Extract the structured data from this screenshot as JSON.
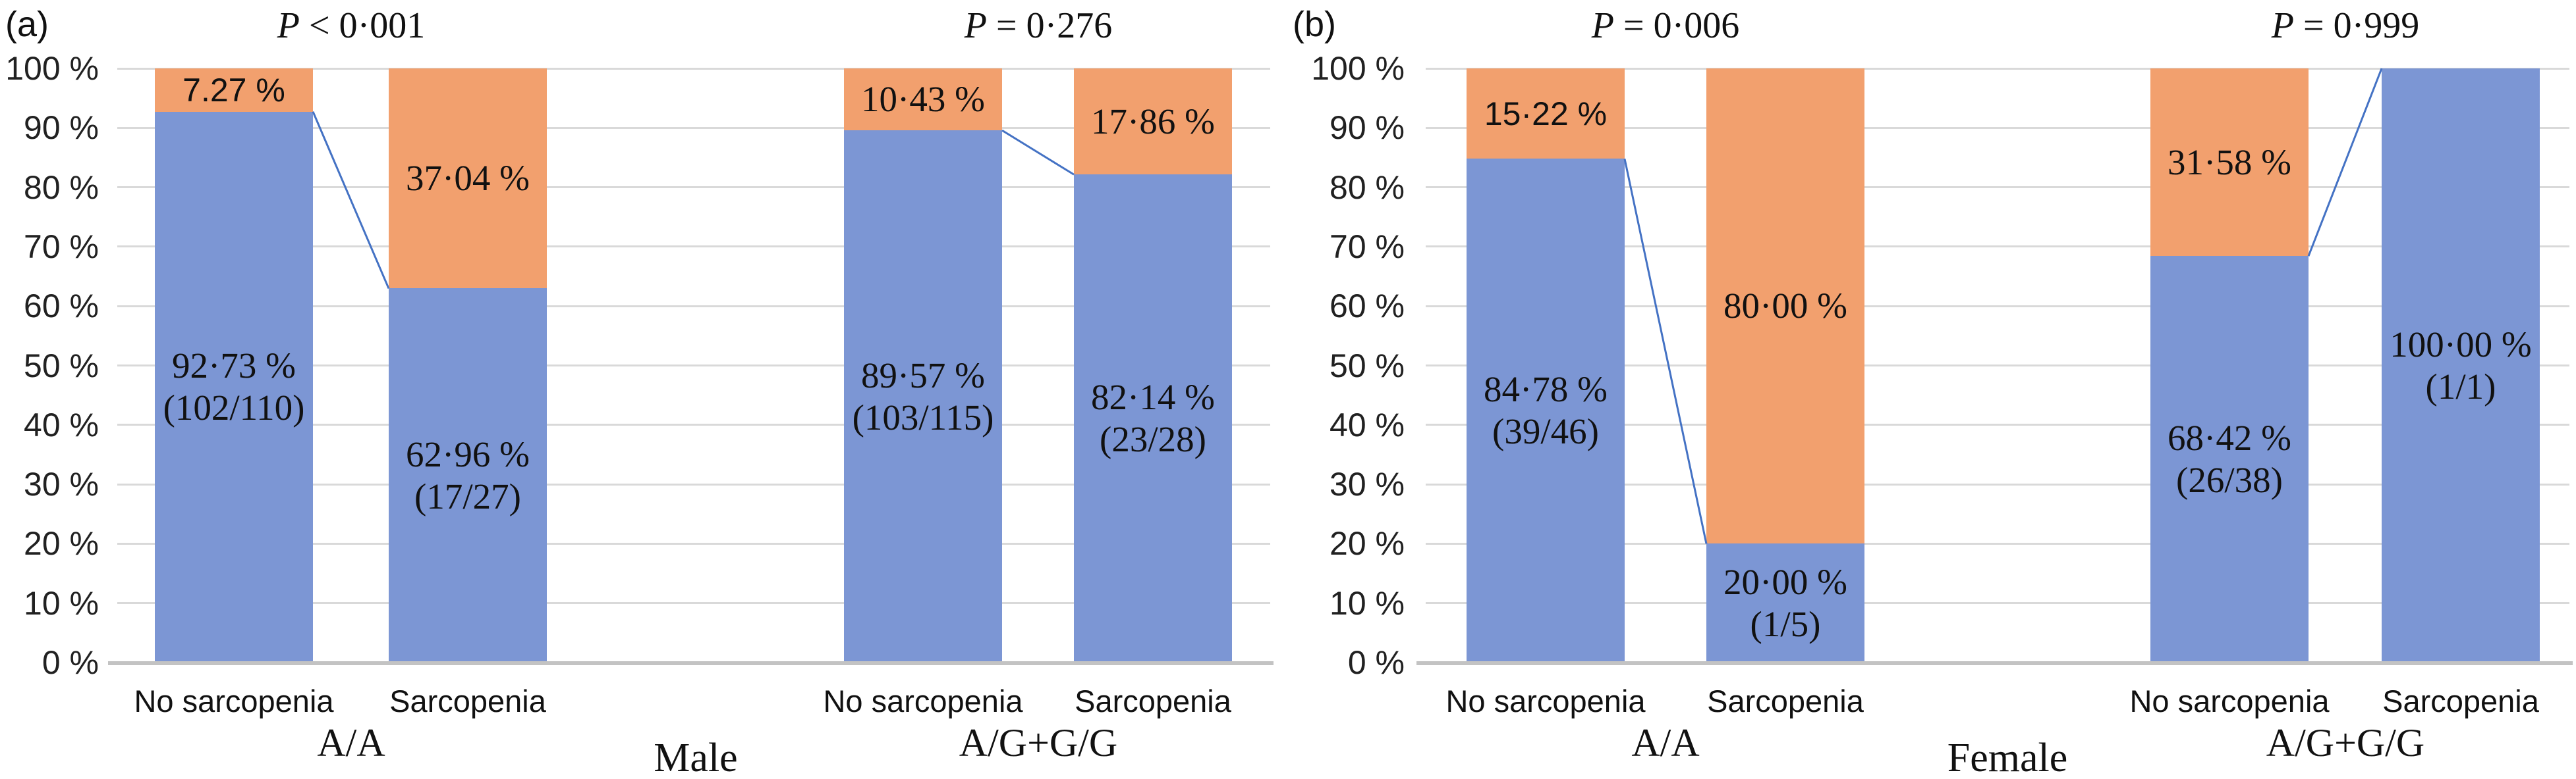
{
  "figure": {
    "colors": {
      "bar_blue": "#7C96D4",
      "bar_orange": "#F2A06E",
      "connector_blue": "#4472C4",
      "gridline": "#D9D9D9",
      "baseline": "#C3C3C3"
    }
  },
  "chart_data": [
    {
      "type": "bar",
      "stacked": true,
      "panel_label": "(a)",
      "sex_label": "Male",
      "ylim": [
        0,
        100
      ],
      "grid": true,
      "y_ticks": [
        "100 %",
        "90 %",
        "80 %",
        "70 %",
        "60 %",
        "50 %",
        "40 %",
        "30 %",
        "20 %",
        "10 %",
        "0 %"
      ],
      "groups": [
        {
          "p_value": "P < 0·001",
          "genotype": "A/A",
          "bars": [
            {
              "category": "No sarcopenia",
              "blue_pct": 92.73,
              "orange_pct": 7.27,
              "blue_label": "92·73 %",
              "blue_count": "(102/110)",
              "orange_label": "7.27 %"
            },
            {
              "category": "Sarcopenia",
              "blue_pct": 62.96,
              "orange_pct": 37.04,
              "blue_label": "62·96 %",
              "blue_count": "(17/27)",
              "orange_label": "37·04 %"
            }
          ]
        },
        {
          "p_value": "P = 0·276",
          "genotype": "A/G+G/G",
          "bars": [
            {
              "category": "No sarcopenia",
              "blue_pct": 89.57,
              "orange_pct": 10.43,
              "blue_label": "89·57 %",
              "blue_count": "(103/115)",
              "orange_label": "10·43 %"
            },
            {
              "category": "Sarcopenia",
              "blue_pct": 82.14,
              "orange_pct": 17.86,
              "blue_label": "82·14 %",
              "blue_count": "(23/28)",
              "orange_label": "17·86 %"
            }
          ]
        }
      ]
    },
    {
      "type": "bar",
      "stacked": true,
      "panel_label": "(b)",
      "sex_label": "Female",
      "ylim": [
        0,
        100
      ],
      "grid": true,
      "y_ticks": [
        "100 %",
        "90 %",
        "80 %",
        "70 %",
        "60 %",
        "50 %",
        "40 %",
        "30 %",
        "20 %",
        "10 %",
        "0 %"
      ],
      "groups": [
        {
          "p_value": "P = 0·006",
          "genotype": "A/A",
          "bars": [
            {
              "category": "No sarcopenia",
              "blue_pct": 84.78,
              "orange_pct": 15.22,
              "blue_label": "84·78 %",
              "blue_count": "(39/46)",
              "orange_label": "15·22 %"
            },
            {
              "category": "Sarcopenia",
              "blue_pct": 20.0,
              "orange_pct": 80.0,
              "blue_label": "20·00 %",
              "blue_count": "(1/5)",
              "orange_label": "80·00 %"
            }
          ]
        },
        {
          "p_value": "P = 0·999",
          "genotype": "A/G+G/G",
          "bars": [
            {
              "category": "No sarcopenia",
              "blue_pct": 68.42,
              "orange_pct": 31.58,
              "blue_label": "68·42 %",
              "blue_count": "(26/38)",
              "orange_label": "31·58 %"
            },
            {
              "category": "Sarcopenia",
              "blue_pct": 100.0,
              "orange_pct": 0,
              "blue_label": "100·00 %",
              "blue_count": "(1/1)"
            }
          ]
        }
      ]
    }
  ]
}
